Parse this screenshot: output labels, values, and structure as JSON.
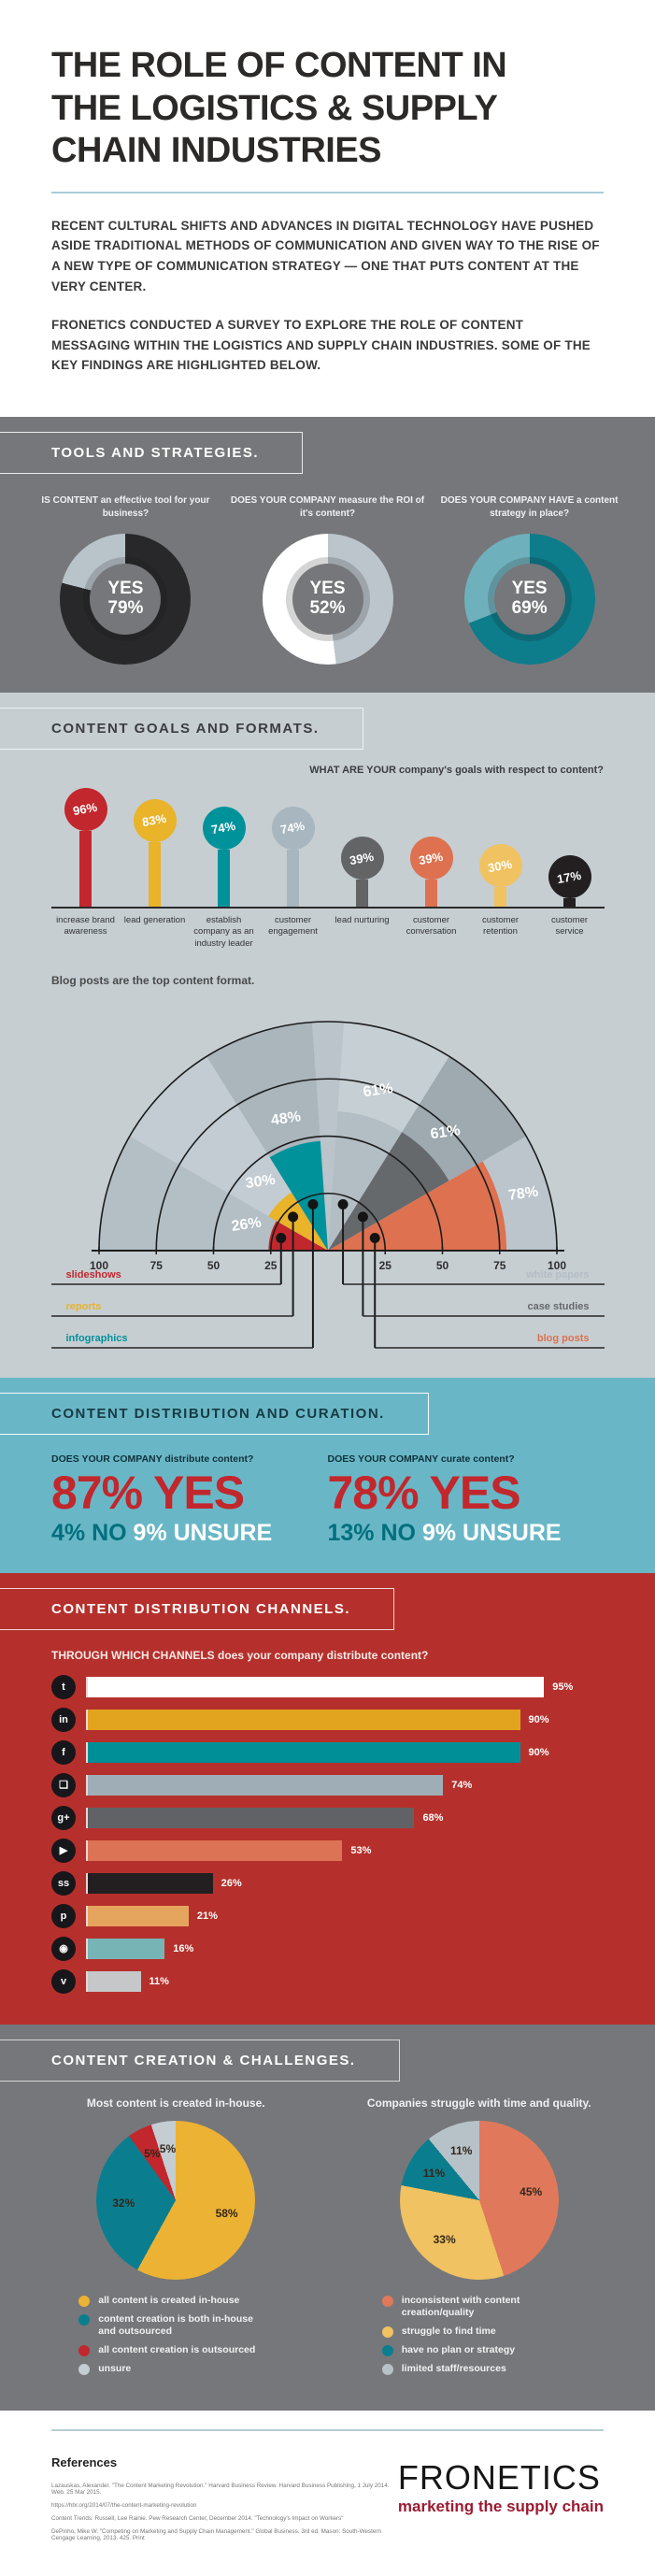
{
  "hero": {
    "title": "THE ROLE OF CONTENT IN THE LOGISTICS & SUPPLY CHAIN INDUSTRIES",
    "intro1": "RECENT CULTURAL SHIFTS AND ADVANCES IN DIGITAL TECHNOLOGY HAVE PUSHED ASIDE TRADITIONAL METHODS OF COMMUNICATION AND GIVEN WAY TO THE RISE OF A NEW TYPE OF COMMUNICATION STRATEGY — ONE THAT PUTS CONTENT AT THE VERY CENTER.",
    "intro2": "FRONETICS CONDUCTED A SURVEY TO EXPLORE THE ROLE OF CONTENT MESSAGING WITHIN THE LOGISTICS AND SUPPLY CHAIN INDUSTRIES. SOME OF THE KEY FINDINGS ARE HIGHLIGHTED BELOW."
  },
  "sections": {
    "tools": {
      "heading": "TOOLS AND STRATEGIES."
    },
    "goals": {
      "heading": "CONTENT GOALS AND FORMATS."
    },
    "distribution": {
      "heading": "CONTENT DISTRIBUTION AND CURATION.",
      "left": {
        "question": "DOES YOUR COMPANY distribute content?",
        "yes": "87% YES",
        "no": "4% NO",
        "unsure": "9% UNSURE"
      },
      "right": {
        "question": "DOES YOUR COMPANY curate content?",
        "yes": "78% YES",
        "no": "13% NO",
        "unsure": "9% UNSURE"
      }
    },
    "channels": {
      "heading": "CONTENT DISTRIBUTION CHANNELS."
    },
    "creation": {
      "heading": "CONTENT CREATION & CHALLENGES."
    }
  },
  "colors": {
    "red": "#c1272d",
    "gold": "#e9b32a",
    "teal": "#00929b",
    "blue_gray": "#a7b6bf",
    "dark_gray": "#636466",
    "salmon": "#dd7150",
    "light_gold": "#f0c261",
    "black": "#231f20",
    "bg_dark_gray": "#76777a",
    "bg_light_gray": "#c6ced2",
    "bg_teal": "#69b7c6",
    "bg_red": "#b5302c",
    "brand_red": "#9c1b31"
  },
  "chart_data": [
    {
      "id": "yes-donuts",
      "type": "pie",
      "variant": "donut-row",
      "items": [
        {
          "question": "IS CONTENT an effective tool for your business?",
          "center_label": "YES",
          "value": 79,
          "value_label": "79%",
          "slices": [
            {
              "color": "#28282b",
              "pct": 79
            },
            {
              "color": "#b9c4ca",
              "pct": 21
            }
          ]
        },
        {
          "question": "DOES YOUR COMPANY measure the ROI of it's content?",
          "center_label": "YES",
          "value": 52,
          "value_label": "52%",
          "slices": [
            {
              "color": "#bcc5cb",
              "pct": 48
            },
            {
              "color": "#ffffff",
              "pct": 52
            }
          ]
        },
        {
          "question": "DOES YOUR COMPANY HAVE a content strategy in place?",
          "center_label": "YES",
          "value": 69,
          "value_label": "69%",
          "slices": [
            {
              "color": "#0d7c8b",
              "pct": 69
            },
            {
              "color": "#6fb0bd",
              "pct": 31
            }
          ]
        }
      ]
    },
    {
      "id": "content-goals",
      "type": "bar",
      "variant": "lollipop",
      "title": "WHAT ARE YOUR company's goals with respect to content?",
      "categories": [
        "increase brand awareness",
        "lead generation",
        "establish company as an industry leader",
        "customer engagement",
        "lead nurturing",
        "customer conversation",
        "customer retention",
        "customer service"
      ],
      "values": [
        96,
        83,
        74,
        74,
        39,
        39,
        30,
        17
      ],
      "colors": [
        "#c1272d",
        "#e9b32a",
        "#00929b",
        "#a7b6bf",
        "#636466",
        "#dd7150",
        "#f0c261",
        "#231f20"
      ],
      "ylim": [
        0,
        100
      ]
    },
    {
      "id": "content-formats",
      "type": "bar",
      "variant": "half-radial",
      "title": "Blog posts are the top content format.",
      "categories": [
        "slideshows",
        "reports",
        "infographics",
        "white papers",
        "case studies",
        "blog posts"
      ],
      "values": [
        26,
        30,
        48,
        61,
        61,
        78
      ],
      "colors": [
        "#c1272d",
        "#e9b32a",
        "#00929b",
        "#b3bdc4",
        "#66696c",
        "#dd7150"
      ],
      "axis_ticks": [
        100,
        75,
        50,
        25,
        25,
        50,
        75,
        100
      ],
      "ylim": [
        0,
        100
      ]
    },
    {
      "id": "distribution-channels",
      "type": "bar",
      "variant": "horizontal",
      "title": "THROUGH WHICH CHANNELS does your company distribute content?",
      "categories": [
        "Twitter",
        "LinkedIn",
        "Facebook",
        "Blog",
        "Google+",
        "YouTube",
        "SlideShare",
        "Pinterest",
        "Instagram",
        "Vimeo"
      ],
      "values": [
        95,
        90,
        90,
        74,
        68,
        53,
        26,
        21,
        16,
        11
      ],
      "colors": [
        "#ffffff",
        "#e2a31e",
        "#008f96",
        "#9fadb6",
        "#606266",
        "#dc7354",
        "#231f20",
        "#e6a55f",
        "#76b4b6",
        "#c6c7c9"
      ],
      "icons": [
        "twitter-icon",
        "linkedin-icon",
        "facebook-icon",
        "blog-icon",
        "google-plus-icon",
        "youtube-icon",
        "slideshare-icon",
        "pinterest-icon",
        "instagram-icon",
        "vimeo-icon"
      ],
      "glyphs": [
        "t",
        "in",
        "f",
        "❏",
        "g+",
        "▶",
        "ss",
        "p",
        "◉",
        "v"
      ],
      "ylim": [
        0,
        100
      ]
    },
    {
      "id": "creation-pie",
      "type": "pie",
      "title": "Most content is created in-house.",
      "slices": [
        {
          "label": "all content is created in-house",
          "value": 58,
          "color": "#ecb233"
        },
        {
          "label": "content creation is both in-house and outsourced",
          "value": 32,
          "color": "#0a7e8e"
        },
        {
          "label": "all content creation is outsourced",
          "value": 5,
          "color": "#c1272d"
        },
        {
          "label": "unsure",
          "value": 5,
          "color": "#c3cdd2"
        }
      ]
    },
    {
      "id": "challenges-pie",
      "type": "pie",
      "title": "Companies struggle with time and quality.",
      "slices": [
        {
          "label": "inconsistent with content creation/quality",
          "value": 45,
          "color": "#e0795b"
        },
        {
          "label": "struggle to find time",
          "value": 33,
          "color": "#f0c261"
        },
        {
          "label": "have no plan or strategy",
          "value": 11,
          "color": "#0a7e8e"
        },
        {
          "label": "limited staff/resources",
          "value": 11,
          "color": "#b7c2c8"
        }
      ]
    }
  ],
  "footer": {
    "references_heading": "References",
    "references": [
      "Lazauskas, Alexander. \"The Content Marketing Revolution.\" Harvard Business Review. Harvard Business Publishing, 1 July 2014. Web. 25 Mar 2015.",
      "https://hbr.org/2014/07/the-content-marketing-revolution",
      "Content Trends: Russell, Lee Rainie. Pew Research Center, December 2014. \"Technology's Impact on Workers\"",
      "DePinho, Mike W. \"Competing on Marketing and Supply Chain Management.\" Global Business. 3rd ed. Mason: South-Western Cengage Learning, 2013. 425. Print"
    ],
    "brand": "FRONETICS",
    "tagline": "marketing the supply chain"
  }
}
